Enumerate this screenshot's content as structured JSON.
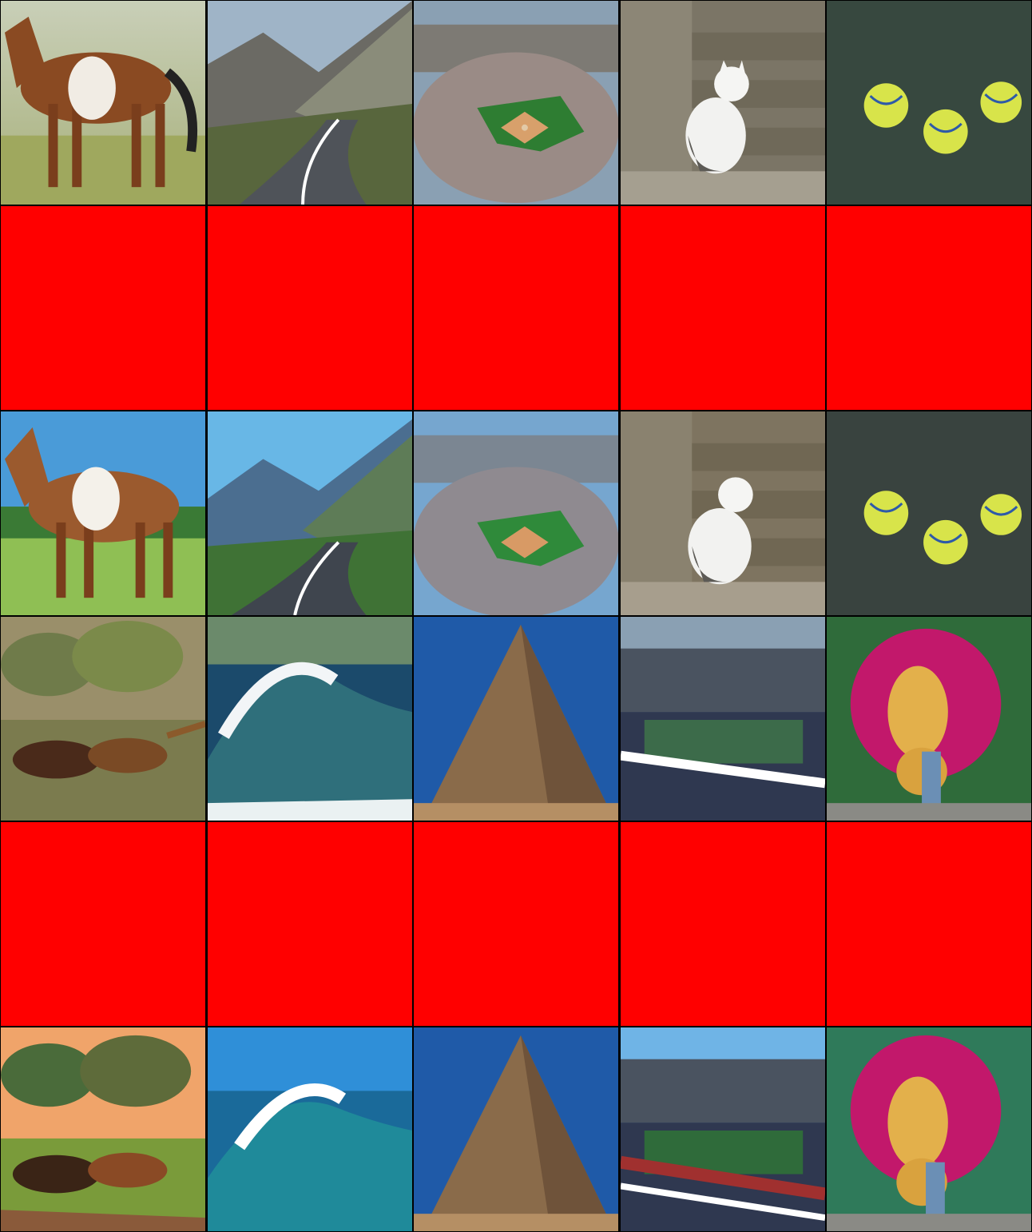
{
  "grid": {
    "rows": 6,
    "columns": 5,
    "placeholder_color": "#ff0000"
  },
  "tiles": [
    {
      "subject": "horse",
      "style": "photo"
    },
    {
      "subject": "mountain-road",
      "style": "photo"
    },
    {
      "subject": "baseball-stadium",
      "style": "photo"
    },
    {
      "subject": "cat-on-stairs",
      "style": "photo"
    },
    {
      "subject": "tennis-balls",
      "style": "photo"
    },
    {
      "subject": "placeholder"
    },
    {
      "subject": "placeholder"
    },
    {
      "subject": "placeholder"
    },
    {
      "subject": "placeholder"
    },
    {
      "subject": "placeholder"
    },
    {
      "subject": "horse",
      "style": "anime"
    },
    {
      "subject": "mountain-road",
      "style": "anime"
    },
    {
      "subject": "baseball-stadium",
      "style": "anime"
    },
    {
      "subject": "cat-on-stairs",
      "style": "anime"
    },
    {
      "subject": "tennis-balls",
      "style": "anime"
    },
    {
      "subject": "running-horses",
      "style": "painting"
    },
    {
      "subject": "ocean-wave",
      "style": "photo"
    },
    {
      "subject": "pyramid",
      "style": "photo"
    },
    {
      "subject": "tennis-stadium",
      "style": "photo"
    },
    {
      "subject": "tuba-flowers",
      "style": "photo"
    },
    {
      "subject": "placeholder"
    },
    {
      "subject": "placeholder"
    },
    {
      "subject": "placeholder"
    },
    {
      "subject": "placeholder"
    },
    {
      "subject": "placeholder"
    },
    {
      "subject": "running-horses",
      "style": "anime"
    },
    {
      "subject": "ocean-wave",
      "style": "anime"
    },
    {
      "subject": "pyramid",
      "style": "anime"
    },
    {
      "subject": "tennis-stadium",
      "style": "anime"
    },
    {
      "subject": "tuba-flowers",
      "style": "anime"
    }
  ]
}
